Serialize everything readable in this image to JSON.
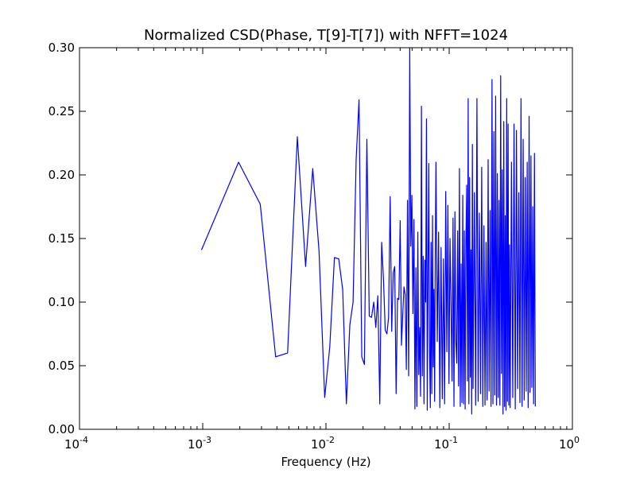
{
  "chart_data": {
    "type": "line",
    "title": "Normalized CSD(Phase, T[9]-T[7]) with NFFT=1024",
    "xlabel": "Frequency (Hz)",
    "ylabel": "",
    "xscale": "log",
    "xlim": [
      0.0001,
      1
    ],
    "ylim": [
      0.0,
      0.3
    ],
    "grid": false,
    "line_color": "#0000ff",
    "x_ticks": [
      {
        "base": "10",
        "exp": "-4"
      },
      {
        "base": "10",
        "exp": "-3"
      },
      {
        "base": "10",
        "exp": "-2"
      },
      {
        "base": "10",
        "exp": "-1"
      },
      {
        "base": "10",
        "exp": "0"
      }
    ],
    "y_ticks": [
      "0.00",
      "0.05",
      "0.10",
      "0.15",
      "0.20",
      "0.25",
      "0.30"
    ],
    "series": [
      {
        "x": [
          0.000977,
          0.001953,
          0.00293,
          0.003906,
          0.004883,
          0.005859,
          0.006836,
          0.007813,
          0.008789,
          0.009766,
          0.010742,
          0.011719,
          0.012695,
          0.013672,
          0.014648,
          0.015625,
          0.016602,
          0.017578,
          0.018555,
          0.019531,
          0.020508,
          0.021484,
          0.022461,
          0.023438,
          0.024414,
          0.025391,
          0.026367,
          0.027344,
          0.02832,
          0.029297,
          0.030273,
          0.03125,
          0.032227,
          0.033203,
          0.03418,
          0.035156,
          0.036133,
          0.037109,
          0.038086,
          0.039063,
          0.040039,
          0.041016,
          0.041992,
          0.042969,
          0.043945,
          0.044922,
          0.045898,
          0.046875,
          0.047852,
          0.048828,
          0.049805,
          0.050781,
          0.051758,
          0.052734,
          0.053711,
          0.054688,
          0.055664,
          0.056641,
          0.057617,
          0.058594,
          0.05957,
          0.060547,
          0.061523,
          0.0625,
          0.063477,
          0.064453,
          0.06543,
          0.066406,
          0.067383,
          0.068359,
          0.069336,
          0.070313,
          0.071289,
          0.072266,
          0.073242,
          0.074219,
          0.075195,
          0.076172,
          0.077148,
          0.078125,
          0.080078,
          0.082031,
          0.083984,
          0.085938,
          0.087891,
          0.089844,
          0.091797,
          0.09375,
          0.095703,
          0.097656,
          0.099609,
          0.101563,
          0.103516,
          0.105469,
          0.107422,
          0.109375,
          0.111328,
          0.113281,
          0.115234,
          0.117188,
          0.119141,
          0.121094,
          0.123047,
          0.125,
          0.126953,
          0.128906,
          0.130859,
          0.132813,
          0.134766,
          0.136719,
          0.138672,
          0.140625,
          0.142578,
          0.144531,
          0.146484,
          0.148438,
          0.150391,
          0.152344,
          0.154297,
          0.15625,
          0.160156,
          0.164063,
          0.167969,
          0.171875,
          0.175781,
          0.179688,
          0.183594,
          0.1875,
          0.191406,
          0.195313,
          0.199219,
          0.203125,
          0.207031,
          0.210938,
          0.214844,
          0.21875,
          0.222656,
          0.226563,
          0.230469,
          0.234375,
          0.238281,
          0.242188,
          0.246094,
          0.25,
          0.253906,
          0.257813,
          0.261719,
          0.265625,
          0.269531,
          0.273438,
          0.277344,
          0.28125,
          0.285156,
          0.289063,
          0.292969,
          0.296875,
          0.300781,
          0.304688,
          0.308594,
          0.3125,
          0.320313,
          0.328125,
          0.335938,
          0.34375,
          0.351563,
          0.359375,
          0.367188,
          0.375,
          0.382813,
          0.390625,
          0.398438,
          0.40625,
          0.414063,
          0.421875,
          0.429688,
          0.4375,
          0.445313,
          0.453125,
          0.460938,
          0.46875,
          0.476563,
          0.484375,
          0.492188,
          0.5
        ],
        "y": [
          0.141,
          0.21,
          0.177,
          0.057,
          0.06,
          0.23,
          0.128,
          0.205,
          0.14,
          0.025,
          0.065,
          0.135,
          0.134,
          0.11,
          0.02,
          0.082,
          0.1,
          0.212,
          0.259,
          0.057,
          0.051,
          0.228,
          0.089,
          0.088,
          0.1,
          0.08,
          0.105,
          0.02,
          0.147,
          0.118,
          0.078,
          0.075,
          0.088,
          0.183,
          0.077,
          0.123,
          0.128,
          0.028,
          0.103,
          0.102,
          0.164,
          0.066,
          0.09,
          0.112,
          0.106,
          0.047,
          0.18,
          0.042,
          0.3,
          0.144,
          0.184,
          0.091,
          0.165,
          0.016,
          0.127,
          0.018,
          0.155,
          0.043,
          0.08,
          0.026,
          0.254,
          0.042,
          0.136,
          0.02,
          0.133,
          0.1,
          0.244,
          0.015,
          0.125,
          0.209,
          0.062,
          0.017,
          0.147,
          0.028,
          0.168,
          0.049,
          0.11,
          0.022,
          0.139,
          0.21,
          0.069,
          0.155,
          0.017,
          0.143,
          0.024,
          0.134,
          0.02,
          0.187,
          0.061,
          0.176,
          0.036,
          0.15,
          0.099,
          0.038,
          0.166,
          0.018,
          0.171,
          0.069,
          0.052,
          0.156,
          0.034,
          0.205,
          0.018,
          0.13,
          0.021,
          0.184,
          0.02,
          0.156,
          0.016,
          0.146,
          0.192,
          0.038,
          0.26,
          0.02,
          0.198,
          0.041,
          0.141,
          0.012,
          0.224,
          0.032,
          0.186,
          0.019,
          0.26,
          0.022,
          0.17,
          0.028,
          0.206,
          0.018,
          0.16,
          0.019,
          0.147,
          0.023,
          0.212,
          0.03,
          0.172,
          0.018,
          0.275,
          0.02,
          0.234,
          0.027,
          0.262,
          0.019,
          0.201,
          0.025,
          0.18,
          0.019,
          0.278,
          0.044,
          0.204,
          0.012,
          0.242,
          0.018,
          0.168,
          0.015,
          0.26,
          0.022,
          0.24,
          0.019,
          0.145,
          0.017,
          0.21,
          0.025,
          0.24,
          0.016,
          0.235,
          0.032,
          0.186,
          0.021,
          0.26,
          0.018,
          0.228,
          0.023,
          0.198,
          0.03,
          0.21,
          0.017,
          0.246,
          0.029,
          0.215,
          0.033,
          0.175,
          0.02,
          0.217,
          0.018
        ]
      }
    ]
  }
}
